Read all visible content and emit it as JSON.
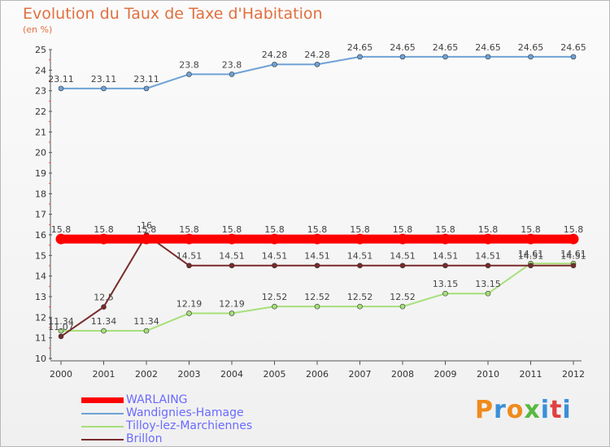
{
  "title": "Evolution du Taux de Taxe d'Habitation",
  "unit_label": "(en %)",
  "logo": {
    "text": "Proxiti",
    "colors": [
      "#f08a1c",
      "#3a8fd8",
      "#f08a1c",
      "#58b840",
      "#3a8fd8",
      "#e04040",
      "#3a8fd8"
    ]
  },
  "legend": [
    {
      "name": "WARLAING",
      "color": "#ff0000"
    },
    {
      "name": "Wandignies-Hamage",
      "color": "#6fa2d6"
    },
    {
      "name": "Tilloy-lez-Marchiennes",
      "color": "#a6e07a"
    },
    {
      "name": "Brillon",
      "color": "#7a2a2a"
    }
  ],
  "chart_data": {
    "type": "line",
    "title": "Evolution du Taux de Taxe d'Habitation",
    "ylabel": "(en %)",
    "xlabel": "",
    "categories": [
      "2000",
      "2001",
      "2002",
      "2003",
      "2004",
      "2005",
      "2006",
      "2007",
      "2008",
      "2009",
      "2010",
      "2011",
      "2012"
    ],
    "ylim": [
      10,
      25
    ],
    "yticks": [
      10,
      11,
      12,
      13,
      14,
      15,
      16,
      17,
      18,
      19,
      20,
      21,
      22,
      23,
      24,
      25
    ],
    "grid": false,
    "legend_position": "bottom-left",
    "series": [
      {
        "name": "WARLAING",
        "color": "#ff0000",
        "values": [
          15.8,
          15.8,
          15.8,
          15.8,
          15.8,
          15.8,
          15.8,
          15.8,
          15.8,
          15.8,
          15.8,
          15.8,
          15.8
        ],
        "labels": [
          "15.8",
          "15.8",
          "15.8",
          "15.8",
          "15.8",
          "15.8",
          "15.8",
          "15.8",
          "15.8",
          "15.8",
          "15.8",
          "15.8",
          "15.8"
        ]
      },
      {
        "name": "Wandignies-Hamage",
        "color": "#6fa2d6",
        "values": [
          23.11,
          23.11,
          23.11,
          23.8,
          23.8,
          24.28,
          24.28,
          24.65,
          24.65,
          24.65,
          24.65,
          24.65,
          24.65
        ],
        "labels": [
          "23.11",
          "23.11",
          "23.11",
          "23.8",
          "23.8",
          "24.28",
          "24.28",
          "24.65",
          "24.65",
          "24.65",
          "24.65",
          "24.65",
          "24.65"
        ]
      },
      {
        "name": "Tilloy-lez-Marchiennes",
        "color": "#a6e07a",
        "values": [
          11.34,
          11.34,
          11.34,
          12.19,
          12.19,
          12.52,
          12.52,
          12.52,
          12.52,
          13.15,
          13.15,
          14.61,
          14.61
        ],
        "labels": [
          "11.34",
          "11.34",
          "11.34",
          "12.19",
          "12.19",
          "12.52",
          "12.52",
          "12.52",
          "12.52",
          "13.15",
          "13.15",
          "14.61",
          "14.61"
        ]
      },
      {
        "name": "Brillon",
        "color": "#7a2a2a",
        "values": [
          11.07,
          12.5,
          16,
          14.51,
          14.51,
          14.51,
          14.51,
          14.51,
          14.51,
          14.51,
          14.51,
          14.51,
          14.51
        ],
        "labels": [
          "11.07",
          "12.5",
          "16",
          "14.51",
          "14.51",
          "14.51",
          "14.51",
          "14.51",
          "14.51",
          "14.51",
          "14.51",
          "14.51",
          "14.51"
        ]
      }
    ]
  }
}
